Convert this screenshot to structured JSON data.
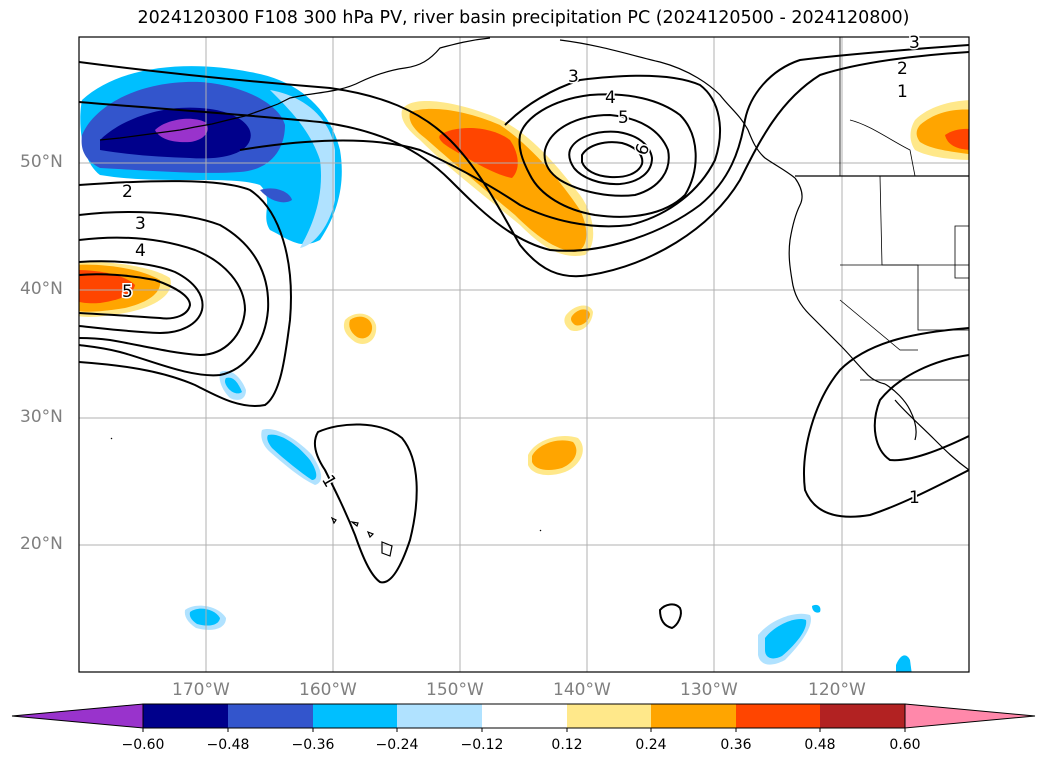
{
  "title": "2024120300 F108 300 hPa PV, river basin precipitation PC (2024120500 - 2024120800)",
  "lat_labels": [
    "50°N",
    "40°N",
    "30°N",
    "20°N"
  ],
  "lon_labels": [
    "170°W",
    "160°W",
    "150°W",
    "140°W",
    "130°W",
    "120°W"
  ],
  "contour_labels": [
    "1",
    "1",
    "1",
    "2",
    "2",
    "3",
    "3",
    "3",
    "4",
    "4",
    "5",
    "5",
    "6"
  ],
  "colorbar": {
    "ticks": [
      "−0.60",
      "−0.48",
      "−0.36",
      "−0.24",
      "−0.12",
      "0.12",
      "0.24",
      "0.36",
      "0.48",
      "0.60"
    ],
    "colors": [
      "#9933cc",
      "#00008b",
      "#3355cc",
      "#00bfff",
      "#b0e2ff",
      "#ffffff",
      "#ffe88a",
      "#ffa500",
      "#ff4500",
      "#b22222",
      "#ff88aa"
    ]
  }
}
